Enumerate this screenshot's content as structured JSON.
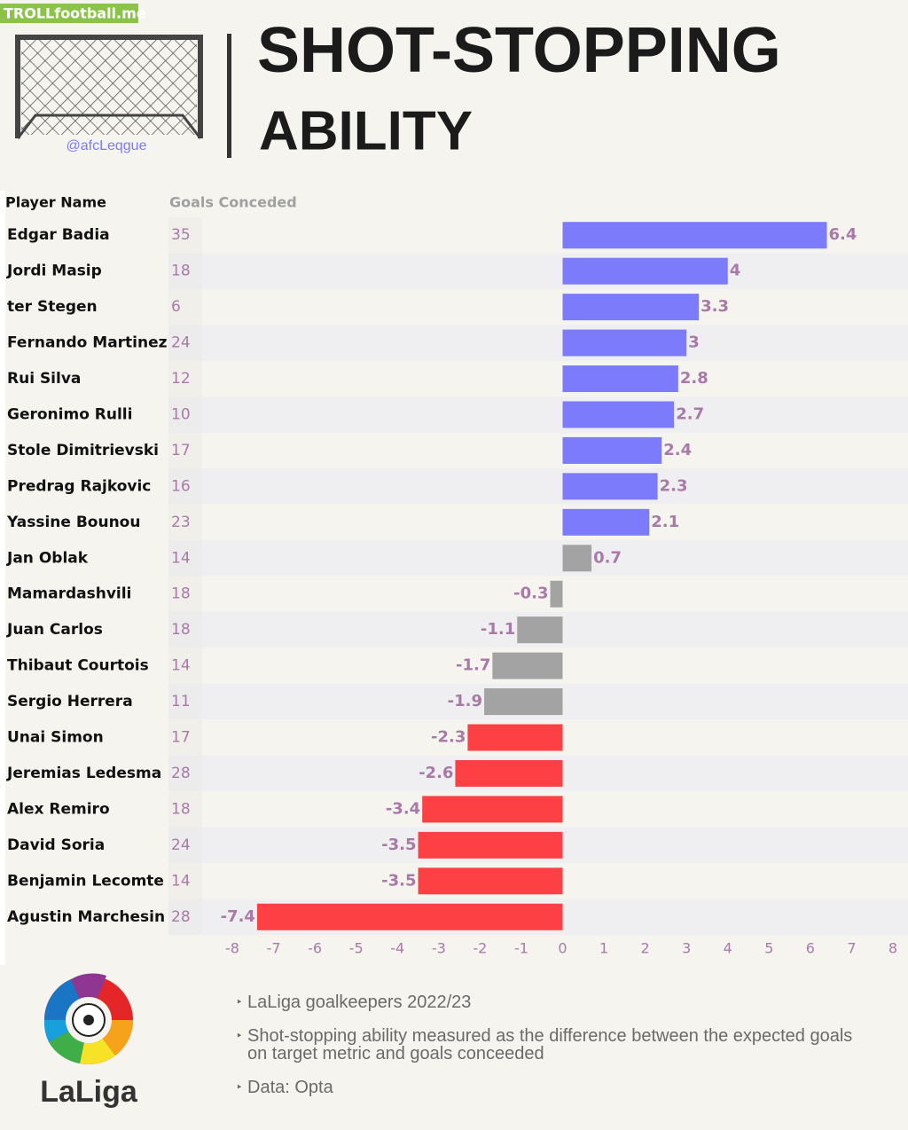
{
  "watermark": "TROLLfootball.me",
  "handle": "@afcLeqgue",
  "logo_text": "LaLiga",
  "notes": [
    "LaLiga goalkeepers 2022/23",
    "Shot-stopping ability measured as the difference between the expected goals on target metric and goals conceeded",
    "Data: Opta"
  ],
  "chart_data": {
    "type": "bar",
    "orientation": "horizontal",
    "title_lines": [
      "SHOT-STOPPING",
      "ABILITY"
    ],
    "column_headers": [
      "Player Name",
      "Goals Conceded"
    ],
    "categories": [
      "Edgar Badia",
      "Jordi Masip",
      "ter Stegen",
      "Fernando Martinez",
      "Rui Silva",
      "Geronimo Rulli",
      "Stole Dimitrievski",
      "Predrag Rajkovic",
      "Yassine Bounou",
      "Jan Oblak",
      "Mamardashvili",
      "Juan Carlos",
      "Thibaut Courtois",
      "Sergio Herrera",
      "Unai Simon",
      "Jeremias Ledesma",
      "Alex Remiro",
      "David Soria",
      "Benjamin Lecomte",
      "Agustin Marchesin"
    ],
    "goals_conceded": [
      35,
      18,
      6,
      24,
      12,
      10,
      17,
      16,
      23,
      14,
      18,
      18,
      14,
      11,
      17,
      28,
      18,
      24,
      14,
      28
    ],
    "values": [
      6.4,
      4,
      3.3,
      3,
      2.8,
      2.7,
      2.4,
      2.3,
      2.1,
      0.7,
      -0.3,
      -1.1,
      -1.7,
      -1.9,
      -2.3,
      -2.6,
      -3.4,
      -3.5,
      -3.5,
      -7.4
    ],
    "colors": [
      "#7b7bfb",
      "#7b7bfb",
      "#7b7bfb",
      "#7b7bfb",
      "#7b7bfb",
      "#7b7bfb",
      "#7b7bfb",
      "#7b7bfb",
      "#7b7bfb",
      "#a3a3a3",
      "#a3a3a3",
      "#a3a3a3",
      "#a3a3a3",
      "#a3a3a3",
      "#fd4043",
      "#fd4043",
      "#fd4043",
      "#fd4043",
      "#fd4043",
      "#fd4043"
    ],
    "xlim": [
      -8,
      8
    ],
    "xticks": [
      -8,
      -7,
      -6,
      -5,
      -4,
      -3,
      -2,
      -1,
      0,
      1,
      2,
      3,
      4,
      5,
      6,
      7,
      8
    ]
  }
}
